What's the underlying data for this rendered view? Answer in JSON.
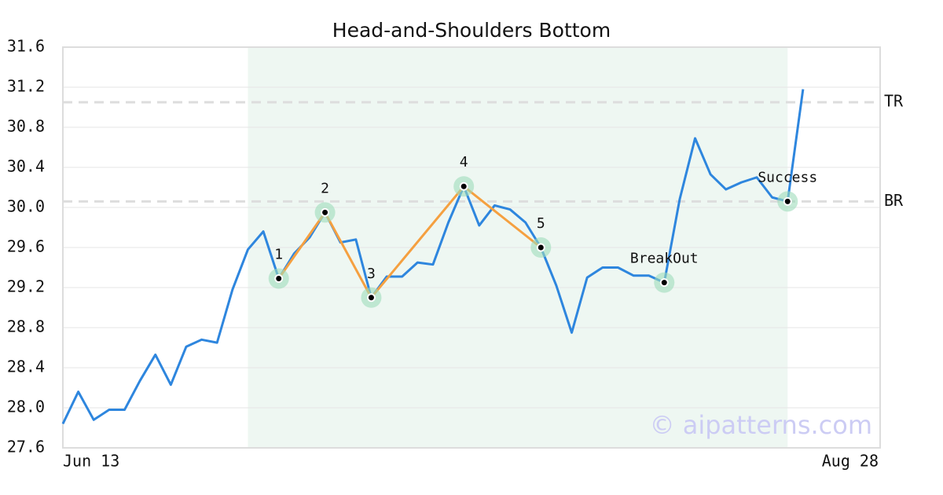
{
  "chart_data": {
    "type": "line",
    "title": "Head-and-Shoulders Bottom",
    "categories": [
      "Jun 13",
      null,
      null,
      null,
      null,
      null,
      null,
      null,
      null,
      null,
      null,
      null,
      null,
      null,
      null,
      null,
      null,
      null,
      null,
      null,
      null,
      null,
      null,
      null,
      null,
      null,
      null,
      null,
      null,
      null,
      null,
      null,
      null,
      null,
      null,
      null,
      null,
      null,
      null,
      null,
      null,
      null,
      null,
      null,
      null,
      null,
      null,
      null,
      null,
      null,
      null,
      null,
      null,
      "Aug 28"
    ],
    "values": [
      27.84,
      28.16,
      27.88,
      27.98,
      27.98,
      28.27,
      28.53,
      28.23,
      28.61,
      28.68,
      28.65,
      29.18,
      29.58,
      29.76,
      29.29,
      29.54,
      29.7,
      29.95,
      29.65,
      29.68,
      29.1,
      29.31,
      29.31,
      29.45,
      29.43,
      29.85,
      30.21,
      29.82,
      30.02,
      29.98,
      29.85,
      29.6,
      29.22,
      28.75,
      29.3,
      29.4,
      29.4,
      29.32,
      29.32,
      29.25,
      30.08,
      30.69,
      30.33,
      30.18,
      30.25,
      30.3,
      30.1,
      30.06,
      31.18,
      null,
      null,
      null,
      null,
      null
    ],
    "color": "#2e86de",
    "ylim": [
      27.6,
      31.6
    ],
    "yticks": [
      27.6,
      {
        "value": 28,
        "label": "28.0"
      },
      28.4,
      28.8,
      29.2,
      29.6,
      {
        "value": 30,
        "label": "30.0"
      },
      30.4,
      30.8,
      31.2,
      31.6
    ],
    "grid": true,
    "highlight_range": [
      12,
      47
    ],
    "pattern": {
      "indices": [
        14,
        17,
        20,
        26,
        31
      ],
      "labels": [
        "1",
        "2",
        "3",
        "4",
        "5"
      ],
      "color": "#f5a040"
    },
    "annotations": [
      {
        "index": 39,
        "label": "BreakOut"
      },
      {
        "index": 47,
        "label": "Success"
      }
    ],
    "hlines": [
      {
        "value": 31.05,
        "label": "TR"
      },
      {
        "value": 30.06,
        "label": "BR"
      }
    ],
    "watermark": "© aipatterns.com"
  }
}
